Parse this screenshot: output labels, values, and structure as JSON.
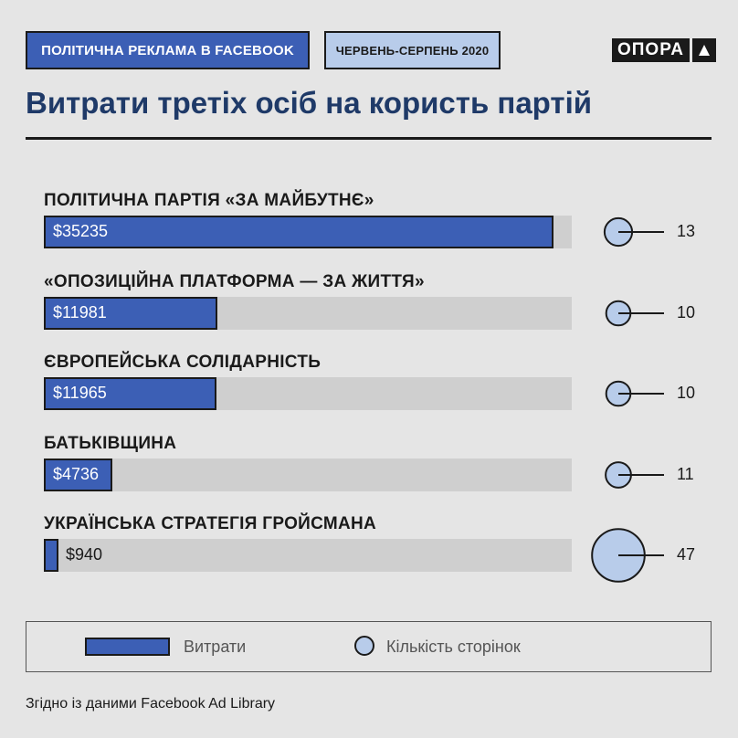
{
  "header": {
    "tag_main": "ПОЛІТИЧНА РЕКЛАМА В FACEBOOK",
    "tag_date": "ЧЕРВЕНЬ-СЕРПЕНЬ 2020",
    "logo": "ОПОРА",
    "logo_icon": "triangle-up-icon"
  },
  "headline": "Витрати третіх осіб на користь партій",
  "colors": {
    "bar": "#3c5fb5",
    "track": "#cfcfcf",
    "circle": "#b8ccea",
    "title": "#1f3a68"
  },
  "chart_data": {
    "type": "bar",
    "orientation": "horizontal",
    "categories": [
      "ПОЛІТИЧНА ПАРТІЯ «ЗА МАЙБУТНЄ»",
      "«ОПОЗИЦІЙНА ПЛАТФОРМА — ЗА ЖИТТЯ»",
      "ЄВРОПЕЙСЬКА СОЛІДАРНІСТЬ",
      "БАТЬКІВЩИНА",
      "УКРАЇНСЬКА СТРАТЕГІЯ ГРОЙСМАНА"
    ],
    "series": [
      {
        "name": "Витрати",
        "values": [
          35235,
          11981,
          11965,
          4736,
          940
        ],
        "labels": [
          "$35235",
          "$11981",
          "$11965",
          "$4736",
          "$940"
        ]
      },
      {
        "name": "Кількість сторінок",
        "values": [
          13,
          10,
          10,
          11,
          47
        ]
      }
    ],
    "xlim": [
      0,
      36500
    ],
    "legend": "bottom"
  },
  "legend": {
    "spend": "Витрати",
    "pages": "Кількість сторінок"
  },
  "source": "Згідно із даними Facebook Ad Library"
}
